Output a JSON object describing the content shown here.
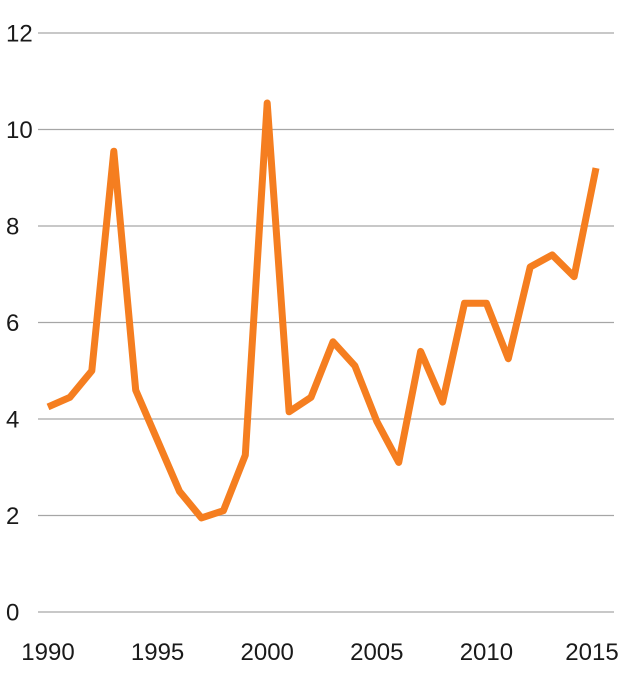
{
  "chart_data": {
    "type": "line",
    "title": "",
    "x": [
      1990,
      1991,
      1992,
      1993,
      1994,
      1995,
      1996,
      1997,
      1998,
      1999,
      2000,
      2001,
      2002,
      2003,
      2004,
      2005,
      2006,
      2007,
      2008,
      2009,
      2010,
      2011,
      2012,
      2013,
      2014,
      2015
    ],
    "values": [
      4.25,
      4.45,
      5.0,
      9.55,
      4.6,
      3.55,
      2.5,
      1.95,
      2.1,
      3.25,
      10.55,
      4.15,
      4.45,
      5.6,
      5.1,
      3.95,
      3.1,
      5.4,
      4.35,
      6.4,
      6.4,
      5.25,
      7.15,
      7.4,
      6.95,
      9.2
    ],
    "xlabel": "",
    "ylabel": "",
    "ylim": [
      0,
      12
    ],
    "y_ticks": [
      0,
      2,
      4,
      6,
      8,
      10,
      12
    ],
    "x_tick_labels": [
      "1990",
      "1995",
      "2000",
      "2005",
      "2010",
      "2015"
    ],
    "x_tick_years": [
      1990,
      1995,
      2000,
      2005,
      2010,
      2015
    ],
    "grid": "horizontal",
    "legend": "none",
    "colors": {
      "line": "#F57E20",
      "gridline": "#A6A6A6",
      "tick_text": "#1A1A1A",
      "background": "#FFFFFF"
    }
  }
}
